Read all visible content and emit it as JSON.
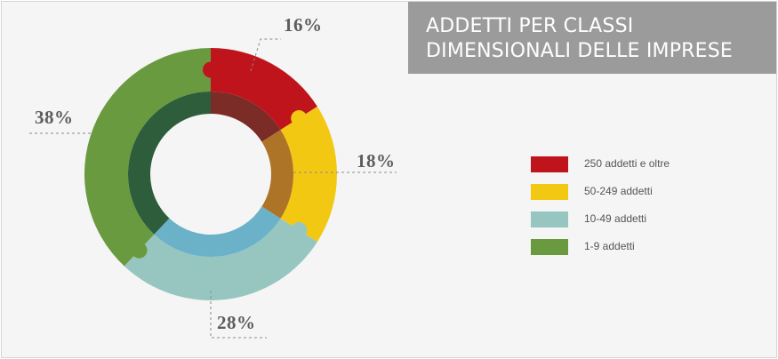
{
  "title": {
    "line1": "ADDETTI PER CLASSI",
    "line2": "DIMENSIONALI DELLE IMPRESE"
  },
  "chart_data": {
    "type": "pie",
    "variant": "donut",
    "categories": [
      "250 addetti e oltre",
      "50-249 addetti",
      "10-49 addetti",
      "1-9 addetti"
    ],
    "values": [
      16,
      18,
      28,
      38
    ],
    "labels": [
      "16%",
      "18%",
      "28%",
      "38%"
    ],
    "unit": "%",
    "colors": [
      "#c0141d",
      "#f2c812",
      "#97c6c1",
      "#6a9a3f"
    ],
    "inner_colors": [
      "#7b2c27",
      "#ad7327",
      "#6bb2c8",
      "#2e5d3b"
    ],
    "legend_position": "right"
  }
}
